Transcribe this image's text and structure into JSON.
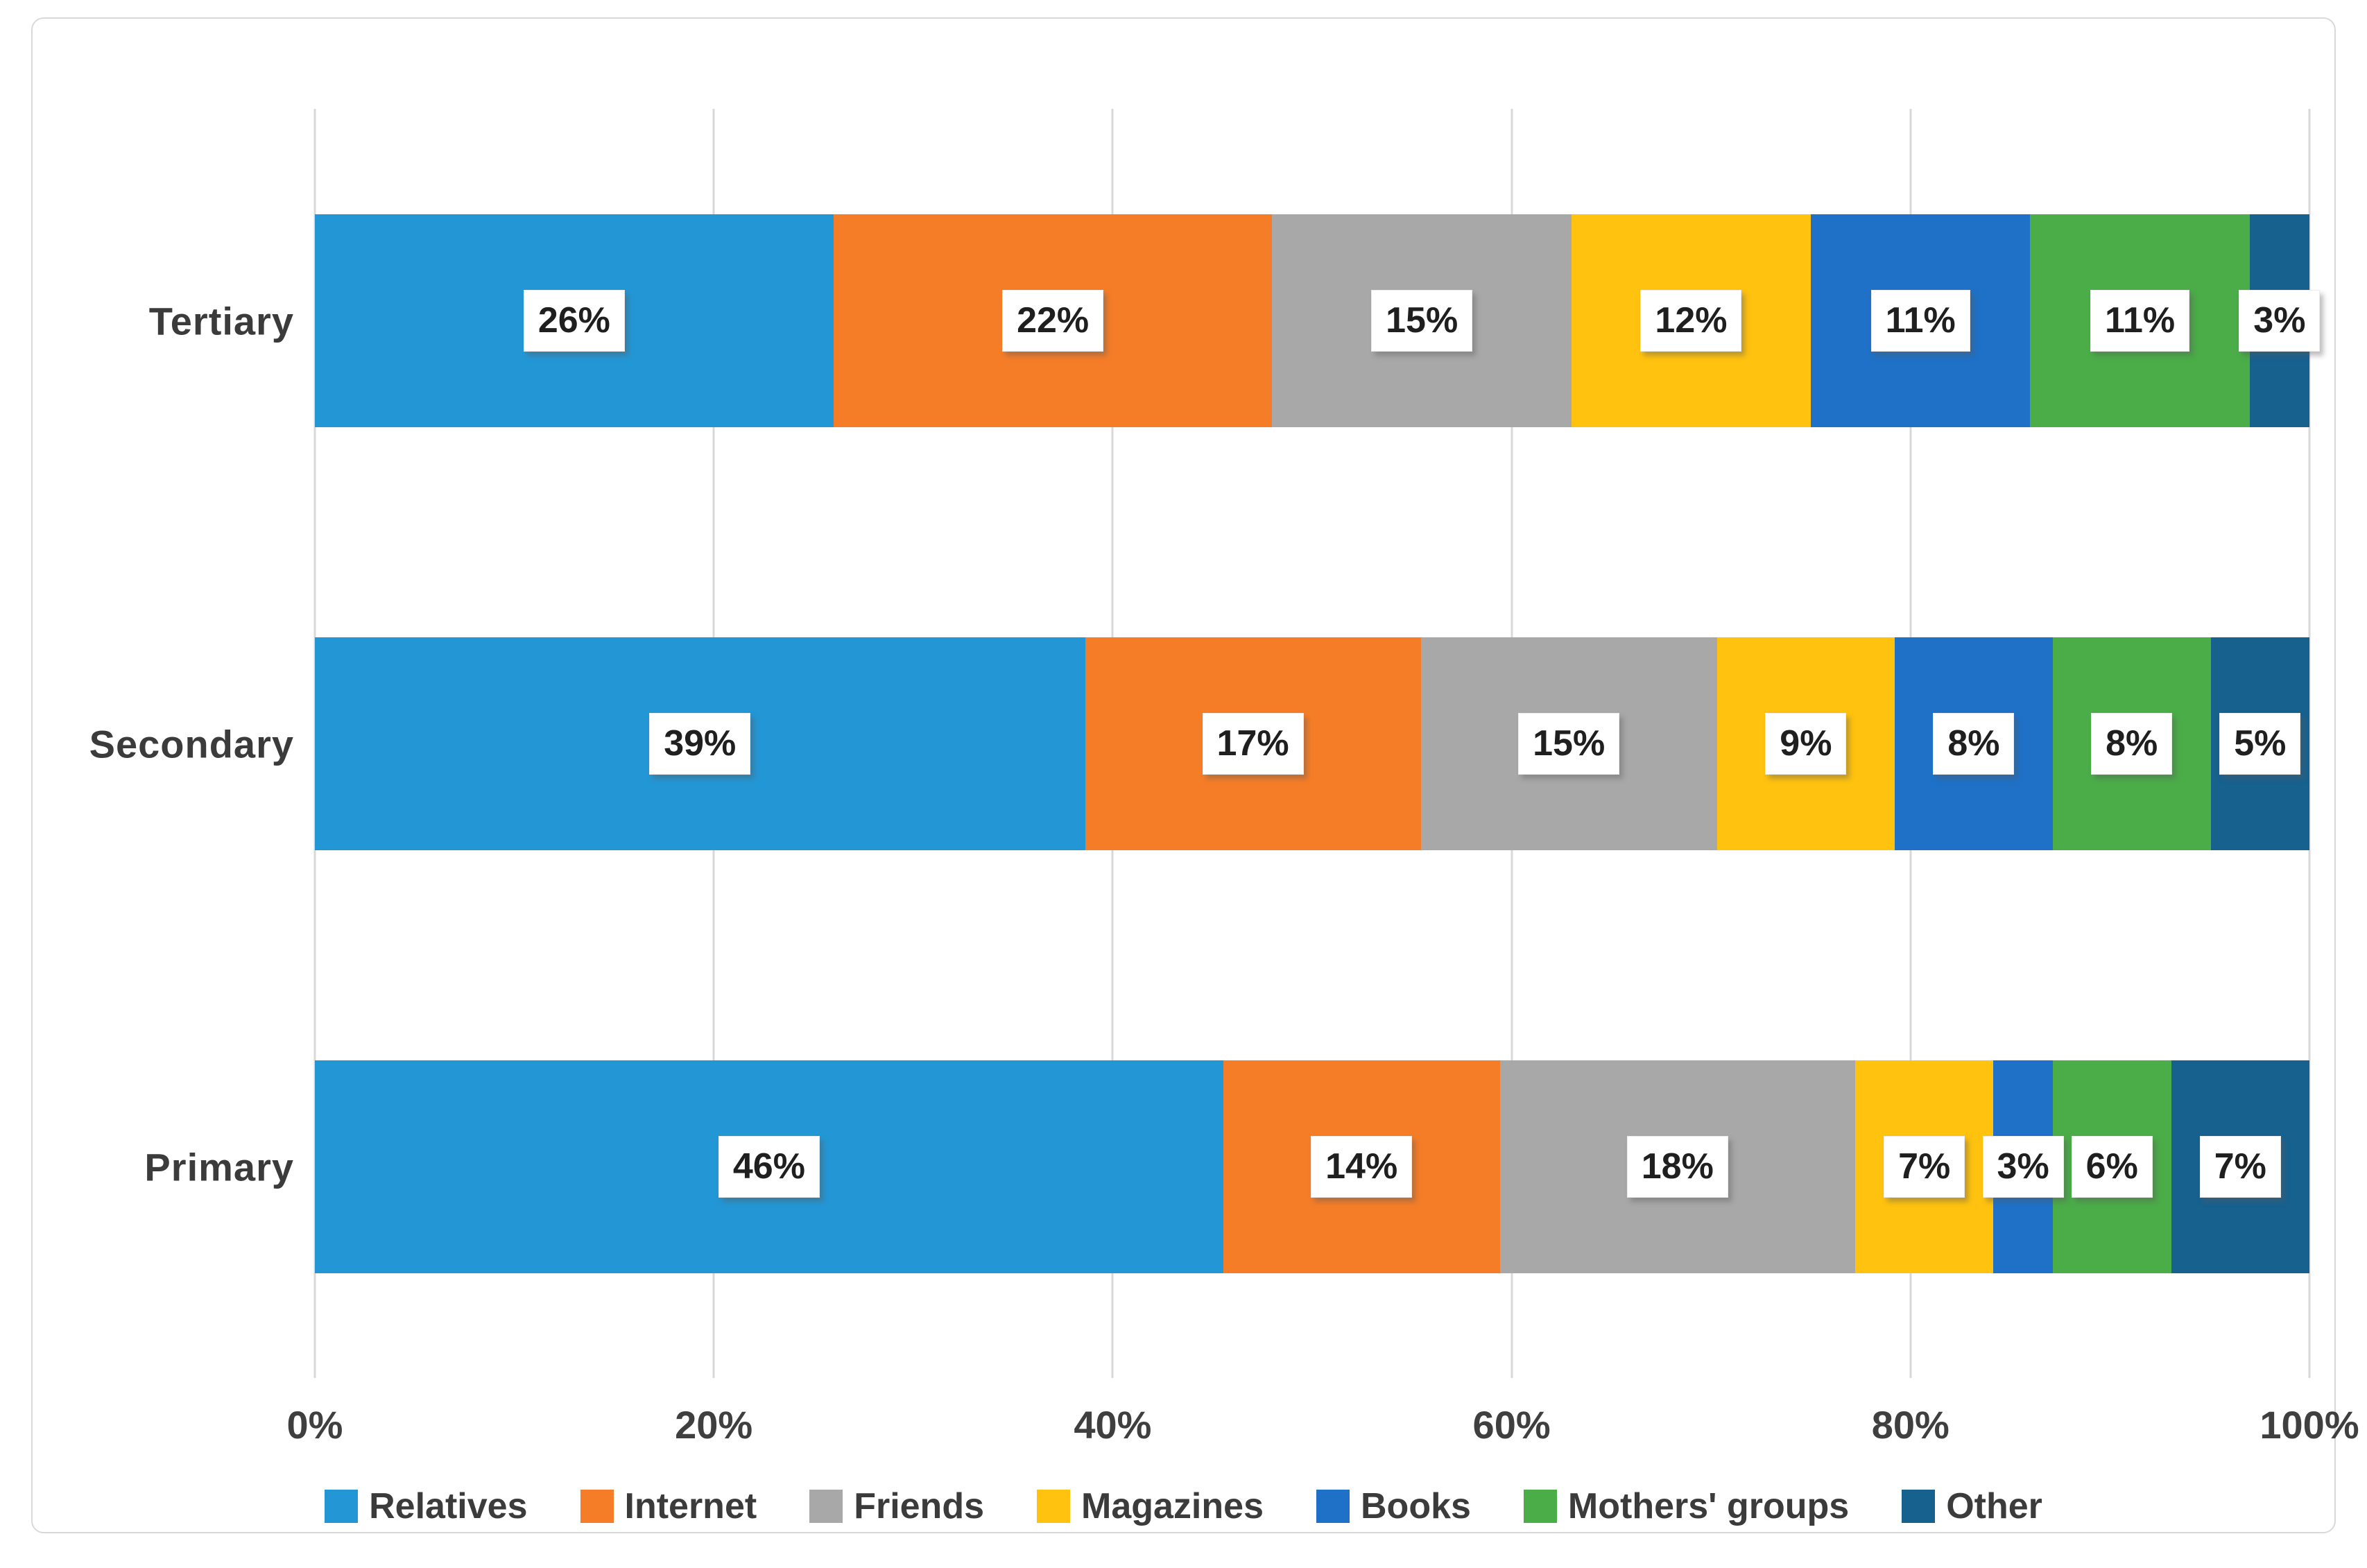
{
  "chart_data": {
    "type": "bar",
    "orientation": "horizontal",
    "stacked": true,
    "title": "",
    "xlabel": "",
    "ylabel": "",
    "grid": true,
    "legend_position": "bottom",
    "label_format": "{value}%",
    "xlim": [
      0,
      100
    ],
    "xticks": [
      "0%",
      "20%",
      "40%",
      "60%",
      "80%",
      "100%"
    ],
    "categories": [
      "Tertiary",
      "Secondary",
      "Primary"
    ],
    "series": [
      {
        "name": "Relatives",
        "color": "#2397d5",
        "values": [
          26,
          39,
          46
        ],
        "labels": [
          "26%",
          "39%",
          "46%"
        ]
      },
      {
        "name": "Internet",
        "color": "#f57d28",
        "values": [
          22,
          17,
          14
        ],
        "labels": [
          "22%",
          "17%",
          "14%"
        ]
      },
      {
        "name": "Friends",
        "color": "#a8a8a8",
        "values": [
          15,
          15,
          18
        ],
        "labels": [
          "15%",
          "15%",
          "18%"
        ]
      },
      {
        "name": "Magazines",
        "color": "#ffc20e",
        "values": [
          12,
          9,
          7
        ],
        "labels": [
          "12%",
          "9%",
          "7%"
        ]
      },
      {
        "name": "Books",
        "color": "#1e71c7",
        "values": [
          11,
          8,
          3
        ],
        "labels": [
          "11%",
          "8%",
          "3%"
        ]
      },
      {
        "name": "Mothers' groups",
        "color": "#4aad48",
        "values": [
          11,
          8,
          6
        ],
        "labels": [
          "11%",
          "8%",
          "6%"
        ]
      },
      {
        "name": "Other",
        "color": "#17618f",
        "values": [
          3,
          5,
          7
        ],
        "labels": [
          "3%",
          "5%",
          "7%"
        ]
      }
    ]
  },
  "style_colors": {
    "gridline": "#d8d8d8",
    "frame_border": "#d9d9d9",
    "axis_text": "#3f3f3f",
    "data_label_text": "#1f1f1f",
    "chip_background": "#ffffff"
  }
}
